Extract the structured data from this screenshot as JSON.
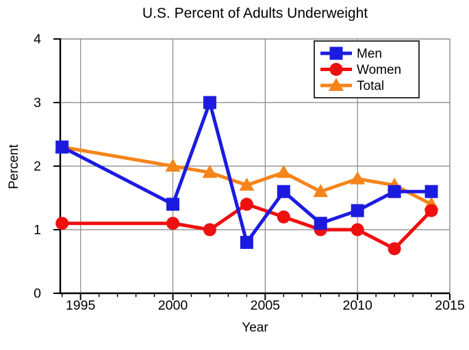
{
  "figure": {
    "title": "U.S. Percent of Adults Underweight",
    "xlabel": "Year",
    "ylabel": "Percent"
  },
  "chart_data": {
    "type": "line",
    "title": "U.S. Percent of Adults Underweight",
    "xlabel": "Year",
    "ylabel": "Percent",
    "x": [
      1994,
      2000,
      2002,
      2004,
      2006,
      2008,
      2010,
      2012,
      2014
    ],
    "series": [
      {
        "name": "Men",
        "color": "#1b1be0",
        "marker": "square",
        "values": [
          2.3,
          1.4,
          3.0,
          0.8,
          1.6,
          1.1,
          1.3,
          1.6,
          1.6
        ]
      },
      {
        "name": "Women",
        "color": "#ee0f0f",
        "marker": "circle",
        "values": [
          1.1,
          1.1,
          1.0,
          1.4,
          1.2,
          1.0,
          1.0,
          0.7,
          1.3
        ]
      },
      {
        "name": "Total",
        "color": "#f5841a",
        "marker": "triangle",
        "values": [
          2.3,
          2.0,
          1.9,
          1.7,
          1.9,
          1.6,
          1.8,
          1.7,
          1.4
        ]
      }
    ],
    "draw_order": [
      2,
      1,
      0
    ],
    "xlim": [
      1993.9,
      2015
    ],
    "ylim": [
      0,
      4
    ],
    "x_major_ticks": [
      1995,
      2000,
      2005,
      2010,
      2015
    ],
    "x_minor_ticks": [
      1994,
      1996,
      1997,
      1998,
      1999,
      2001,
      2002,
      2003,
      2004,
      2006,
      2007,
      2008,
      2009,
      2011,
      2012,
      2013,
      2014
    ],
    "y_major_ticks": [
      0,
      1,
      2,
      3,
      4
    ],
    "grid": true,
    "legend_position": "top-right",
    "legend_labels": [
      "Men",
      "Women",
      "Total"
    ]
  },
  "style": {
    "background": "#ffffff",
    "axis_color": "#000000",
    "grid_color": "#858585",
    "frame_color": "#8a8a8a",
    "legend_border_color": "#333333",
    "legend_fill": "#ffffff",
    "text_color": "#000000"
  }
}
